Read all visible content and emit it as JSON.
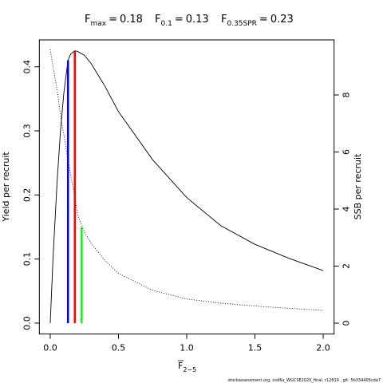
{
  "chart_data": {
    "type": "line",
    "reference_lines": [
      {
        "symbol": "F",
        "subscript": "max",
        "relation": "=",
        "x": 0.18,
        "value": 0.425,
        "axis": "y",
        "color": "#ff0000"
      },
      {
        "symbol": "F",
        "subscript": "0.1",
        "relation": "=",
        "x": 0.13,
        "value": 0.41,
        "axis": "y",
        "color": "#0000ff"
      },
      {
        "symbol": "F",
        "subscript": "0.35SPR",
        "relation": "=",
        "x": 0.23,
        "value": 3.36,
        "axis": "y2",
        "color": "#00ff00"
      }
    ],
    "xlabel": {
      "symbol": "F",
      "subscript": "2−5"
    },
    "ylabel": "Yield per recruit",
    "y2label": "SSB per recruit",
    "footnote": "stockassessment.org, cod6a_WGCSE2020_final, r12819 , git: 5b334405cda7",
    "x": [
      0,
      0.02,
      0.05,
      0.075,
      0.1,
      0.13,
      0.15,
      0.18,
      0.2,
      0.25,
      0.3,
      0.4,
      0.5,
      0.75,
      1,
      1.25,
      1.5,
      1.75,
      2
    ],
    "series": [
      {
        "name": "Yield per recruit",
        "color": "#000000",
        "dash": "solid",
        "axis": "y",
        "values": [
          0,
          0.1,
          0.22,
          0.3,
          0.36,
          0.41,
          0.42,
          0.425,
          0.424,
          0.418,
          0.405,
          0.37,
          0.33,
          0.255,
          0.196,
          0.152,
          0.123,
          0.101,
          0.082
        ]
      },
      {
        "name": "SSB per recruit",
        "color": "#000000",
        "dash": "dotted",
        "axis": "y2",
        "values": [
          9.6,
          9.0,
          8.2,
          7.3,
          6.6,
          5.7,
          5.2,
          4.4,
          3.8,
          3.2,
          2.8,
          2.2,
          1.75,
          1.15,
          0.85,
          0.7,
          0.6,
          0.52,
          0.45
        ]
      }
    ],
    "xlim": [
      -0.08,
      2.08
    ],
    "ylim": [
      -0.017,
      0.442
    ],
    "y2lim": [
      -0.38,
      9.93
    ],
    "xticks": [
      {
        "value": 0,
        "label": "0.0"
      },
      {
        "value": 0.5,
        "label": "0.5"
      },
      {
        "value": 1,
        "label": "1.0"
      },
      {
        "value": 1.5,
        "label": "1.5"
      },
      {
        "value": 2,
        "label": "2.0"
      }
    ],
    "yticks": [
      {
        "value": 0,
        "label": "0.0"
      },
      {
        "value": 0.1,
        "label": "0.1"
      },
      {
        "value": 0.2,
        "label": "0.2"
      },
      {
        "value": 0.3,
        "label": "0.3"
      },
      {
        "value": 0.4,
        "label": "0.4"
      }
    ],
    "y2ticks": [
      0,
      2,
      4,
      6,
      8
    ]
  }
}
